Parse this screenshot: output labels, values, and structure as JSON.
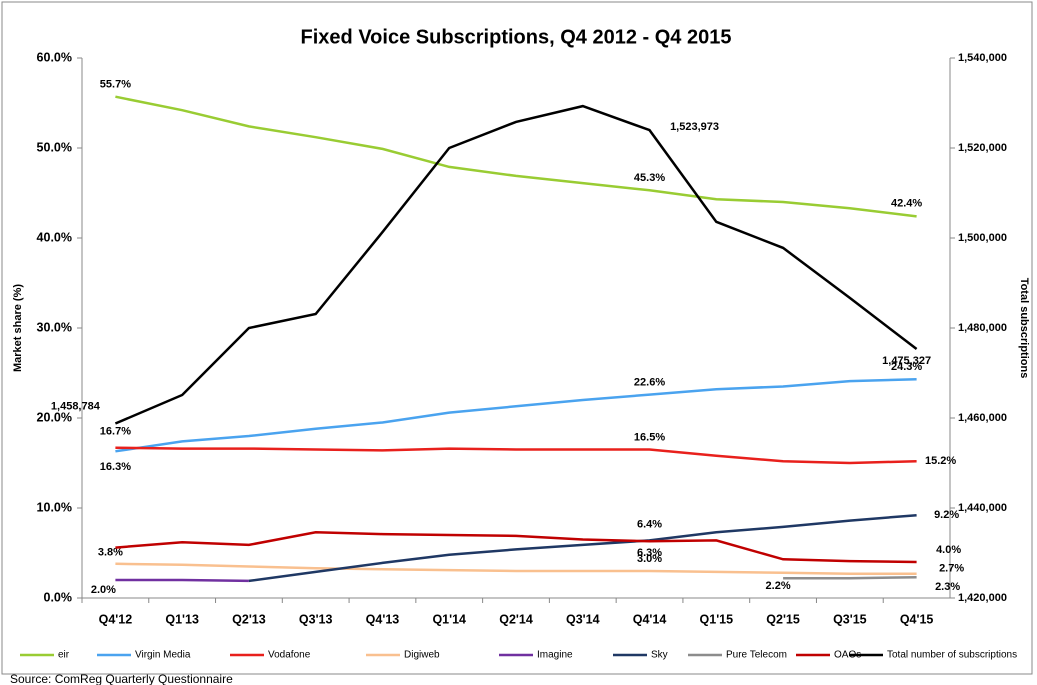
{
  "chart_data": {
    "type": "line",
    "title": "Fixed Voice Subscriptions, Q4 2012 - Q4 2015",
    "y_label": "Market share (%)",
    "y2_label": "Total subscriptions",
    "source": "Source: ComReg Quarterly Questionnaire",
    "categories": [
      "Q4'12",
      "Q1'13",
      "Q2'13",
      "Q3'13",
      "Q4'13",
      "Q1'14",
      "Q2'14",
      "Q3'14",
      "Q4'14",
      "Q1'15",
      "Q2'15",
      "Q3'15",
      "Q4'15"
    ],
    "ylim": [
      0,
      60
    ],
    "yticks": [
      {
        "value": 0,
        "label": "0.0%"
      },
      {
        "value": 10,
        "label": "10.0%"
      },
      {
        "value": 20,
        "label": "20.0%"
      },
      {
        "value": 30,
        "label": "30.0%"
      },
      {
        "value": 40,
        "label": "40.0%"
      },
      {
        "value": 50,
        "label": "50.0%"
      },
      {
        "value": 60,
        "label": "60.0%"
      }
    ],
    "y2lim": [
      1420000,
      1540000
    ],
    "y2ticks": [
      {
        "value": 1420000,
        "label": "1,420,000"
      },
      {
        "value": 1440000,
        "label": "1,440,000"
      },
      {
        "value": 1460000,
        "label": "1,460,000"
      },
      {
        "value": 1480000,
        "label": "1,480,000"
      },
      {
        "value": 1500000,
        "label": "1,500,000"
      },
      {
        "value": 1520000,
        "label": "1,520,000"
      },
      {
        "value": 1540000,
        "label": "1,540,000"
      }
    ],
    "grid": false,
    "legend": "bottom",
    "series": [
      {
        "name": "eir",
        "color": "#99cc33",
        "values": [
          55.7,
          54.2,
          52.4,
          51.2,
          49.9,
          47.9,
          46.9,
          46.1,
          45.3,
          44.3,
          44.0,
          43.3,
          42.4
        ],
        "value_labels": [
          "55.7%",
          null,
          null,
          null,
          null,
          null,
          null,
          null,
          "45.3%",
          null,
          null,
          null,
          "42.4%"
        ]
      },
      {
        "name": "Virgin Media",
        "color": "#4aa3ef",
        "values": [
          16.3,
          17.4,
          18.0,
          18.8,
          19.5,
          20.6,
          21.3,
          22.0,
          22.6,
          23.2,
          23.5,
          24.1,
          24.3
        ],
        "value_labels": [
          "16.3%",
          null,
          null,
          null,
          null,
          null,
          null,
          null,
          "22.6%",
          null,
          null,
          null,
          "24.3%"
        ]
      },
      {
        "name": "Vodafone",
        "color": "#e8201c",
        "values": [
          16.7,
          16.6,
          16.6,
          16.5,
          16.4,
          16.6,
          16.5,
          16.5,
          16.5,
          15.8,
          15.2,
          15.0,
          15.2
        ],
        "value_labels": [
          "16.7%",
          null,
          null,
          null,
          null,
          null,
          null,
          null,
          "16.5%",
          null,
          null,
          null,
          "15.2%"
        ]
      },
      {
        "name": "Digiweb",
        "color": "#f9c08f",
        "values": [
          3.8,
          3.7,
          3.5,
          3.3,
          3.2,
          3.1,
          3.0,
          3.0,
          3.0,
          2.9,
          2.8,
          2.7,
          2.7
        ],
        "value_labels": [
          "3.8%",
          null,
          null,
          null,
          null,
          null,
          null,
          null,
          "3.0%",
          null,
          null,
          null,
          "2.7%"
        ]
      },
      {
        "name": "Imagine",
        "color": "#7030a0",
        "values": [
          2.0,
          2.0,
          1.9,
          null,
          null,
          null,
          null,
          null,
          null,
          null,
          null,
          null,
          null
        ],
        "value_labels": [
          "2.0%",
          null,
          null,
          null,
          null,
          null,
          null,
          null,
          null,
          null,
          null,
          null,
          null
        ]
      },
      {
        "name": "Sky",
        "color": "#1f3864",
        "values": [
          null,
          null,
          1.9,
          2.9,
          3.9,
          4.8,
          5.4,
          5.9,
          6.4,
          7.3,
          7.9,
          8.6,
          9.2
        ],
        "value_labels": [
          null,
          null,
          null,
          null,
          null,
          null,
          null,
          null,
          "6.4%",
          null,
          null,
          null,
          "9.2%"
        ]
      },
      {
        "name": "Pure Telecom",
        "color": "#8c8c8c",
        "values": [
          null,
          null,
          null,
          null,
          null,
          null,
          null,
          null,
          null,
          null,
          2.2,
          2.2,
          2.3
        ],
        "value_labels": [
          null,
          null,
          null,
          null,
          null,
          null,
          null,
          null,
          null,
          null,
          "2.2%",
          null,
          "2.3%"
        ]
      },
      {
        "name": "OAOs",
        "color": "#c00000",
        "values": [
          5.6,
          6.2,
          5.9,
          7.3,
          7.1,
          7.0,
          6.9,
          6.5,
          6.3,
          6.4,
          4.3,
          4.1,
          4.0
        ],
        "value_labels": [
          null,
          null,
          null,
          null,
          null,
          null,
          null,
          null,
          "6.3%",
          null,
          null,
          null,
          "4.0%"
        ]
      },
      {
        "name": "Total number of subscriptions",
        "color": "#000000",
        "axis": "y2",
        "values": [
          1458784,
          1465100,
          1480000,
          1483100,
          1501300,
          1520000,
          1525800,
          1529300,
          1523973,
          1503600,
          1497800,
          1486700,
          1475327
        ],
        "value_labels": [
          "1,458,784",
          null,
          null,
          null,
          null,
          null,
          null,
          null,
          "1,523,973",
          null,
          null,
          null,
          "1,475,327"
        ]
      }
    ]
  }
}
